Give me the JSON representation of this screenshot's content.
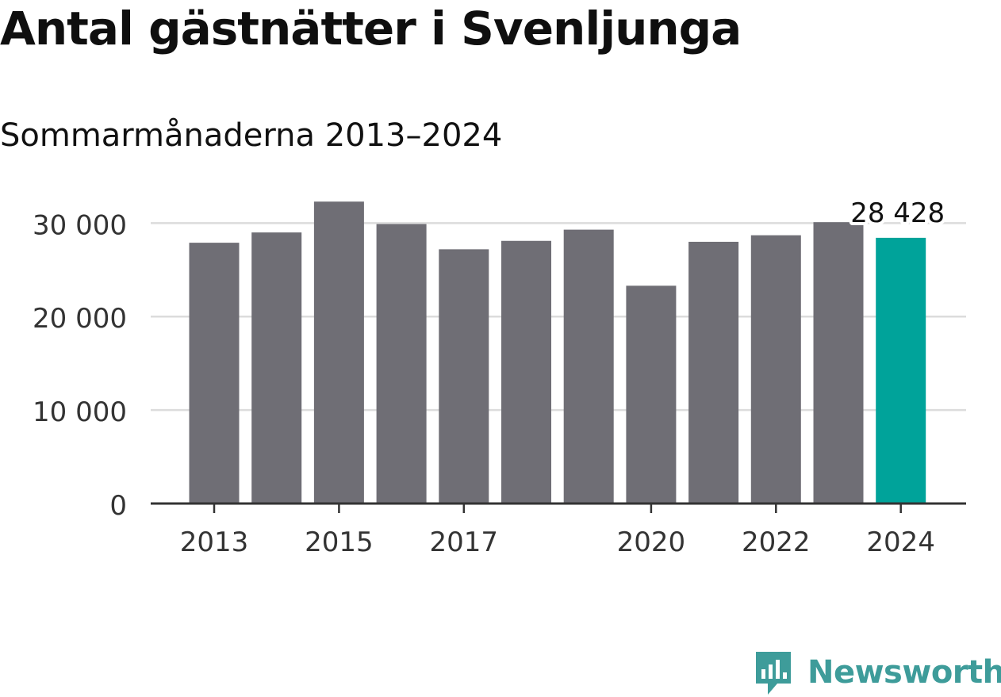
{
  "header": {
    "title": "Antal gästnätter i Svenljunga",
    "subtitle": "Sommarmånaderna 2013–2024"
  },
  "brand": {
    "name": "Newsworthy",
    "icon": "newsworthy-logo-icon",
    "color": "#3e9c9a"
  },
  "colors": {
    "bar": "#6f6e75",
    "highlight": "#00a39a",
    "grid": "#dcdcdc",
    "axis": "#333333"
  },
  "chart_data": {
    "type": "bar",
    "title": "Antal gästnätter i Svenljunga",
    "subtitle": "Sommarmånaderna 2013–2024",
    "categories": [
      "2013",
      "2014",
      "2015",
      "2016",
      "2017",
      "2018",
      "2019",
      "2020",
      "2021",
      "2022",
      "2023",
      "2024"
    ],
    "values": [
      27900,
      29000,
      32300,
      29900,
      27200,
      28100,
      29300,
      23300,
      28000,
      28700,
      30100,
      28428
    ],
    "highlight_index": 11,
    "annotation": {
      "category": "2024",
      "text": "28 428"
    },
    "ylim": [
      0,
      33000
    ],
    "yticks": [
      0,
      10000,
      20000,
      30000
    ],
    "ytick_labels": [
      "0",
      "10 000",
      "20 000",
      "30 000"
    ],
    "xtick_labels": [
      "2013",
      "2015",
      "2017",
      "2020",
      "2022",
      "2024"
    ],
    "xlabel": "",
    "ylabel": "",
    "grid": true,
    "legend": "none"
  }
}
